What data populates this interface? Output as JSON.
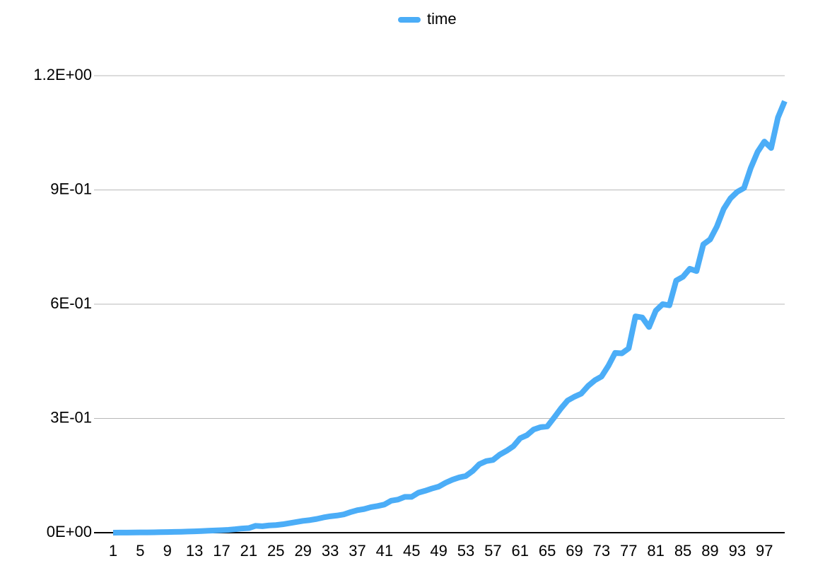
{
  "chart_data": {
    "type": "line",
    "categories": [
      1,
      null,
      null,
      null,
      5,
      null,
      null,
      null,
      9,
      null,
      null,
      null,
      13,
      null,
      null,
      null,
      17,
      null,
      null,
      null,
      21,
      null,
      null,
      null,
      25,
      null,
      null,
      null,
      29,
      null,
      null,
      null,
      33,
      null,
      null,
      null,
      37,
      null,
      null,
      null,
      41,
      null,
      null,
      null,
      45,
      null,
      null,
      null,
      49,
      null,
      null,
      null,
      53,
      null,
      null,
      null,
      57,
      null,
      null,
      null,
      61,
      null,
      null,
      null,
      65,
      null,
      null,
      null,
      69,
      null,
      null,
      null,
      73,
      null,
      null,
      null,
      77,
      null,
      null,
      null,
      81,
      null,
      null,
      null,
      85,
      null,
      null,
      null,
      89,
      null,
      null,
      null,
      93,
      null,
      null,
      null,
      97,
      null,
      null,
      null
    ],
    "series": [
      {
        "name": "time",
        "color": "#4badf7",
        "values": [
          0.0001,
          0.0002,
          0.0003,
          0.0004,
          0.0006,
          0.0008,
          0.001,
          0.0013,
          0.0016,
          0.002,
          0.0024,
          0.003,
          0.0035,
          0.0042,
          0.005,
          0.0057,
          0.0065,
          0.0075,
          0.009,
          0.011,
          0.012,
          0.018,
          0.017,
          0.019,
          0.02,
          0.022,
          0.025,
          0.028,
          0.031,
          0.033,
          0.036,
          0.04,
          0.043,
          0.045,
          0.048,
          0.054,
          0.059,
          0.062,
          0.067,
          0.07,
          0.074,
          0.084,
          0.087,
          0.094,
          0.094,
          0.105,
          0.11,
          0.116,
          0.121,
          0.131,
          0.139,
          0.145,
          0.149,
          0.162,
          0.18,
          0.188,
          0.191,
          0.205,
          0.215,
          0.227,
          0.248,
          0.256,
          0.271,
          0.277,
          0.279,
          0.302,
          0.326,
          0.347,
          0.357,
          0.365,
          0.385,
          0.4,
          0.41,
          0.438,
          0.472,
          0.471,
          0.484,
          0.568,
          0.565,
          0.54,
          0.583,
          0.6,
          0.597,
          0.662,
          0.672,
          0.693,
          0.687,
          0.757,
          0.77,
          0.804,
          0.85,
          0.878,
          0.895,
          0.905,
          0.958,
          1.0,
          1.027,
          1.01,
          1.09,
          1.133
        ]
      }
    ],
    "ylim": [
      0,
      1.2
    ],
    "yticks": [
      {
        "value": 0,
        "label": "0E+00"
      },
      {
        "value": 0.3,
        "label": "3E-01"
      },
      {
        "value": 0.6,
        "label": "6E-01"
      },
      {
        "value": 0.9,
        "label": "9E-01"
      },
      {
        "value": 1.2,
        "label": "1.2E+00"
      }
    ],
    "grid": true,
    "legend": "top"
  }
}
